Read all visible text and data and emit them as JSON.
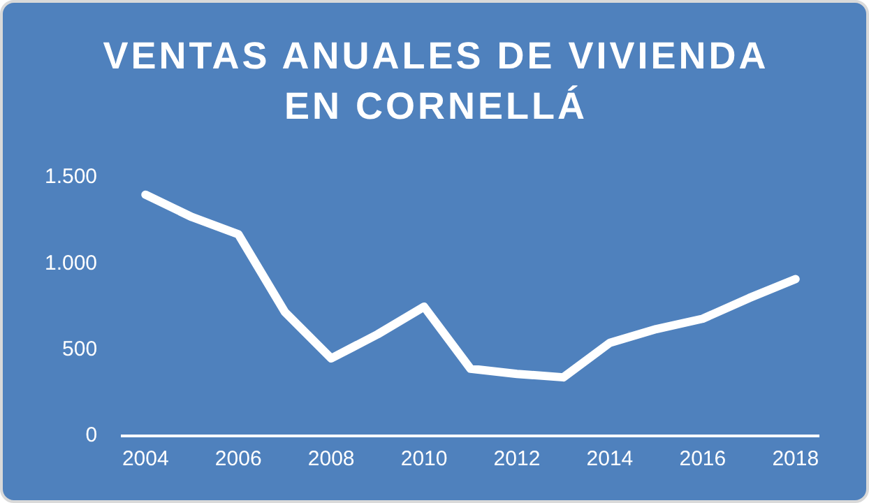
{
  "chart_data": {
    "type": "line",
    "title": "VENTAS ANUALES DE VIVIENDA EN CORNELLÁ",
    "x": [
      2004,
      2005,
      2006,
      2007,
      2008,
      2009,
      2010,
      2011,
      2012,
      2013,
      2014,
      2015,
      2016,
      2017,
      2018
    ],
    "series": [
      {
        "color": "#ffffff",
        "values": [
          1400,
          1270,
          1170,
          720,
          450,
          590,
          750,
          390,
          360,
          340,
          540,
          620,
          680,
          800,
          910
        ]
      }
    ],
    "xlim": [
      2003.5,
      2018.5
    ],
    "xticks": [
      2004,
      2006,
      2008,
      2010,
      2012,
      2014,
      2016,
      2018
    ],
    "ylim": [
      0,
      1500
    ],
    "yticks": [
      0,
      500,
      {
        "value": 1000,
        "label": "1.000"
      },
      {
        "value": 1500,
        "label": "1.500"
      }
    ],
    "grid": false,
    "legend": false,
    "marker": "none",
    "line_style": "solid"
  }
}
